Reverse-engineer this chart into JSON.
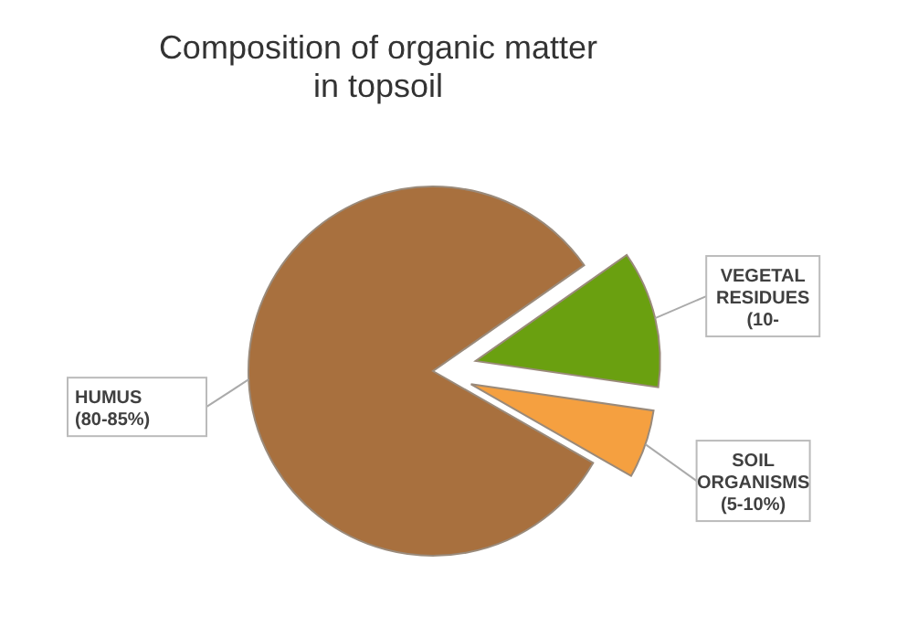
{
  "chart_data": {
    "type": "pie",
    "title": "Composition of organic matter in topsoil",
    "categories": [
      "VEGETAL RESIDUES (10-",
      "SOIL ORGANISMS (5-10%)",
      "HUMUS (80-85%)"
    ],
    "values": [
      12,
      6,
      82
    ],
    "colors": [
      "#6aa010",
      "#f5a040",
      "#a8703e"
    ],
    "legend": false
  }
}
